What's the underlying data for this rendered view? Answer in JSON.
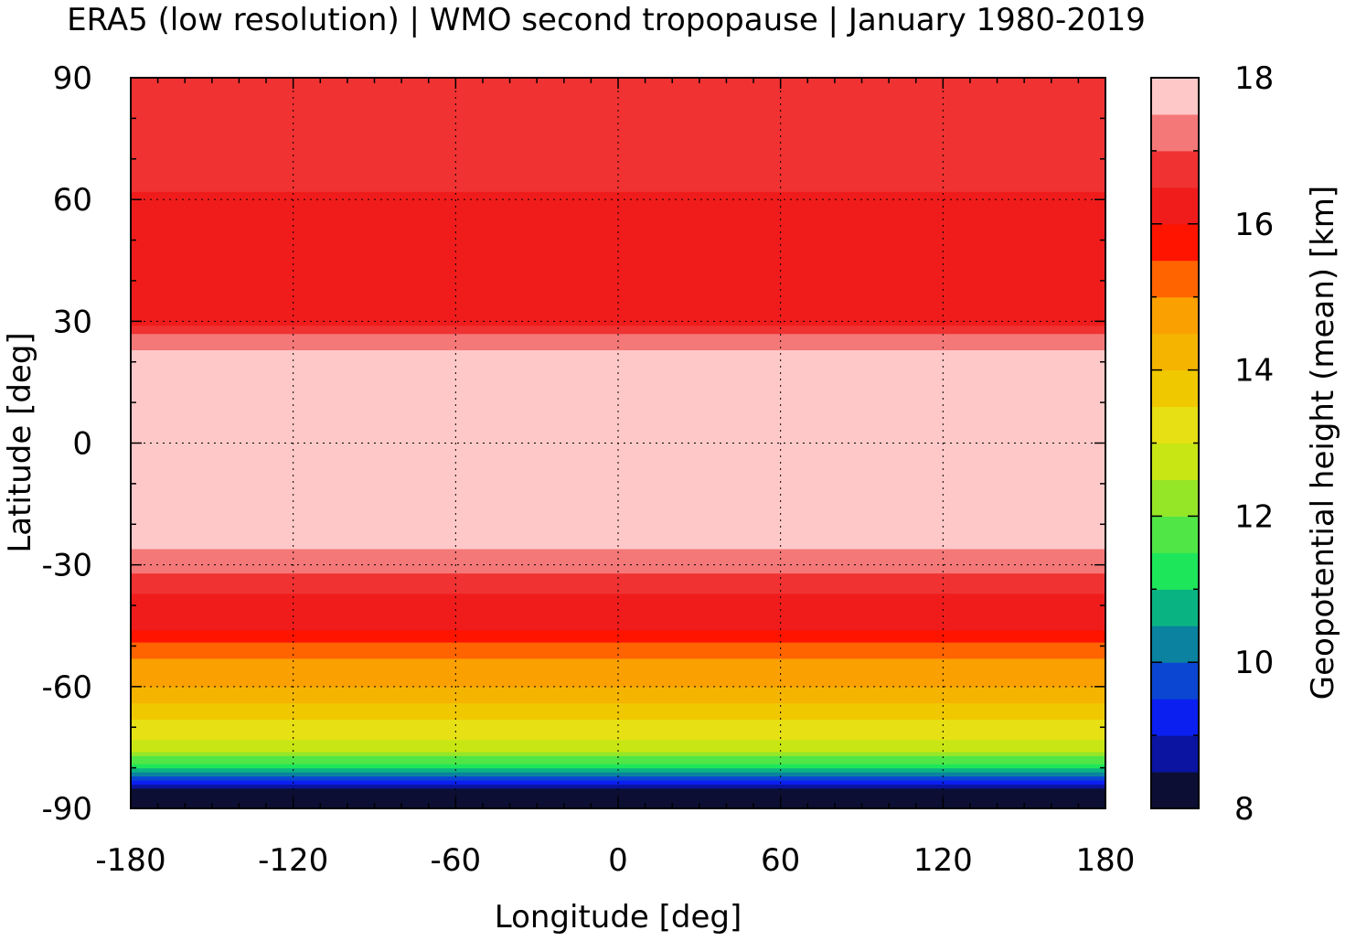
{
  "chart_data": {
    "type": "heatmap",
    "title": "ERA5 (low resolution) | WMO second tropopause | January 1980-2019",
    "xlabel": "Longitude [deg]",
    "ylabel": "Latitude [deg]",
    "colorbar_label": "Geopotential height (mean) [km]",
    "xlim": [
      -180,
      180
    ],
    "ylim": [
      -90,
      90
    ],
    "xticks": [
      "-180",
      "-120",
      "-60",
      "0",
      "60",
      "120",
      "180"
    ],
    "yticks": [
      "90",
      "60",
      "30",
      "0",
      "-30",
      "-60",
      "-90"
    ],
    "colorbar_ticks": [
      "18",
      "16",
      "14",
      "12",
      "10",
      "8"
    ],
    "colorbar_range": [
      8,
      18
    ],
    "grid": true,
    "colormap": [
      {
        "from": 8.0,
        "to": 8.5,
        "color": "#0c0f33"
      },
      {
        "from": 8.5,
        "to": 9.0,
        "color": "#0a14a0"
      },
      {
        "from": 9.0,
        "to": 9.5,
        "color": "#0a1ff0"
      },
      {
        "from": 9.5,
        "to": 10.0,
        "color": "#0a46d2"
      },
      {
        "from": 10.0,
        "to": 10.5,
        "color": "#0a82a0"
      },
      {
        "from": 10.5,
        "to": 11.0,
        "color": "#0ab482"
      },
      {
        "from": 11.0,
        "to": 11.5,
        "color": "#1ee65a"
      },
      {
        "from": 11.5,
        "to": 12.0,
        "color": "#50e646"
      },
      {
        "from": 12.0,
        "to": 12.5,
        "color": "#96e628"
      },
      {
        "from": 12.5,
        "to": 13.0,
        "color": "#c8e614"
      },
      {
        "from": 13.0,
        "to": 13.5,
        "color": "#e6e014"
      },
      {
        "from": 13.5,
        "to": 14.0,
        "color": "#f0c800"
      },
      {
        "from": 14.0,
        "to": 14.5,
        "color": "#f5b400"
      },
      {
        "from": 14.5,
        "to": 15.0,
        "color": "#faa000"
      },
      {
        "from": 15.0,
        "to": 15.5,
        "color": "#ff6400"
      },
      {
        "from": 15.5,
        "to": 16.0,
        "color": "#ff1400"
      },
      {
        "from": 16.0,
        "to": 16.5,
        "color": "#f01c1c"
      },
      {
        "from": 16.5,
        "to": 17.0,
        "color": "#f03232"
      },
      {
        "from": 17.0,
        "to": 17.5,
        "color": "#f57878"
      },
      {
        "from": 17.5,
        "to": 18.0,
        "color": "#ffc8c8"
      }
    ],
    "zonal_mean_profile": {
      "lat": [
        -90,
        -85,
        -80,
        -75,
        -70,
        -65,
        -60,
        -55,
        -50,
        -45,
        -40,
        -35,
        -30,
        -25,
        -20,
        -15,
        -10,
        -5,
        0,
        5,
        10,
        15,
        20,
        25,
        30,
        35,
        40,
        45,
        50,
        55,
        60,
        65,
        70,
        75,
        80,
        85,
        90
      ],
      "height_km": [
        8.2,
        8.5,
        11.0,
        12.8,
        13.2,
        13.8,
        14.5,
        14.8,
        15.2,
        16.2,
        16.3,
        16.6,
        17.2,
        17.6,
        17.8,
        17.9,
        17.9,
        17.9,
        17.9,
        17.9,
        17.9,
        17.9,
        17.8,
        17.3,
        16.4,
        16.3,
        16.2,
        16.2,
        16.2,
        16.2,
        16.4,
        16.6,
        16.7,
        16.8,
        16.9,
        16.9,
        16.9
      ]
    }
  }
}
